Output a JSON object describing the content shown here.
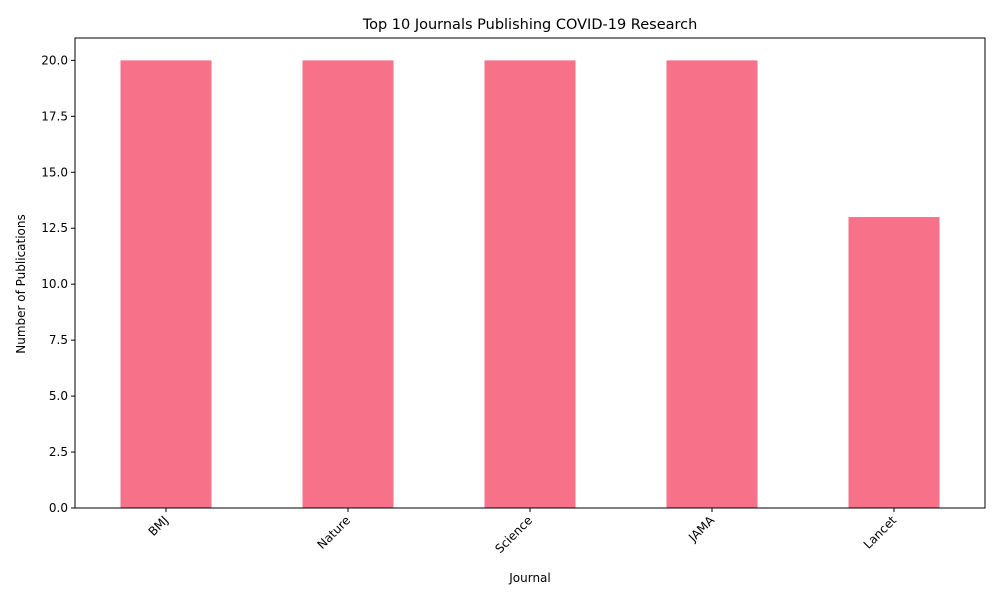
{
  "chart_data": {
    "type": "bar",
    "title": "Top 10 Journals Publishing COVID-19 Research",
    "xlabel": "Journal",
    "ylabel": "Number of Publications",
    "categories": [
      "BMJ",
      "Nature",
      "Science",
      "JAMA",
      "Lancet"
    ],
    "values": [
      20,
      20,
      20,
      20,
      13
    ],
    "ylim": [
      0,
      21
    ],
    "yticks": [
      0.0,
      2.5,
      5.0,
      7.5,
      10.0,
      12.5,
      15.0,
      17.5,
      20.0
    ],
    "ytick_labels": [
      "0.0",
      "2.5",
      "5.0",
      "7.5",
      "10.0",
      "12.5",
      "15.0",
      "17.5",
      "20.0"
    ],
    "bar_color": "#f77189",
    "grid": false,
    "legend": "none"
  }
}
